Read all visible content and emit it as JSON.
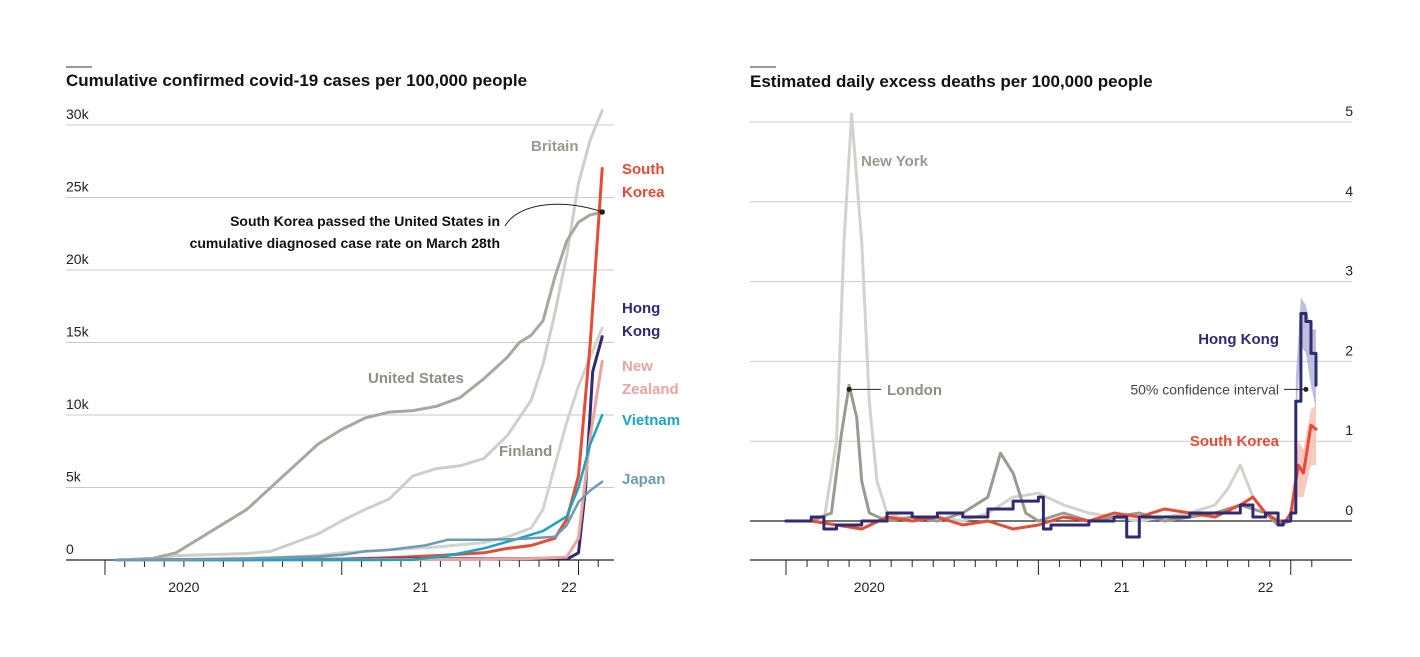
{
  "colors": {
    "britain": "#cfcfca",
    "united_states": "#a8a89e",
    "finland": "#d3d3ce",
    "south_korea": "#e64b35",
    "hong_kong": "#2e2b73",
    "new_zealand": "#e9a5a0",
    "vietnam": "#1aa4c0",
    "japan": "#6f9ab4",
    "new_york": "#d3d3ce",
    "london": "#9a9a90"
  },
  "chart_data": [
    {
      "type": "line",
      "title": "Cumulative confirmed covid-19 cases per 100,000 people",
      "xlabel": "",
      "ylabel": "",
      "ylim": [
        0,
        30000
      ],
      "xlim": [
        2020.0,
        2022.15
      ],
      "y_ticks": [
        0,
        5000,
        10000,
        15000,
        20000,
        25000,
        30000
      ],
      "y_tick_labels": [
        "0",
        "5k",
        "10k",
        "15k",
        "20k",
        "25k",
        "30k"
      ],
      "x_tick_labels": [
        {
          "value": 2020.333,
          "label": "2020"
        },
        {
          "value": 2021.333,
          "label": "21"
        },
        {
          "value": 2021.96,
          "label": "22"
        }
      ],
      "series": [
        {
          "key": "britain",
          "name": "Britain",
          "x": [
            2020.05,
            2020.2,
            2020.3,
            2020.5,
            2020.6,
            2020.7,
            2020.8,
            2020.9,
            2021.0,
            2021.1,
            2021.2,
            2021.3,
            2021.4,
            2021.5,
            2021.6,
            2021.7,
            2021.8,
            2021.85,
            2021.9,
            2021.95,
            2022.0,
            2022.05,
            2022.1
          ],
          "values": [
            0,
            100,
            300,
            400,
            450,
            600,
            1200,
            1800,
            2700,
            3500,
            4200,
            5800,
            6300,
            6500,
            7000,
            8600,
            11000,
            13500,
            17000,
            21000,
            26000,
            29000,
            31000
          ]
        },
        {
          "key": "united_states",
          "name": "United States",
          "x": [
            2020.05,
            2020.2,
            2020.3,
            2020.4,
            2020.5,
            2020.6,
            2020.7,
            2020.8,
            2020.9,
            2021.0,
            2021.1,
            2021.2,
            2021.3,
            2021.4,
            2021.5,
            2021.6,
            2021.7,
            2021.75,
            2021.8,
            2021.85,
            2021.9,
            2021.95,
            2022.0,
            2022.05,
            2022.1
          ],
          "values": [
            0,
            100,
            500,
            1500,
            2500,
            3500,
            5000,
            6500,
            8000,
            9000,
            9800,
            10200,
            10300,
            10600,
            11200,
            12500,
            14000,
            15000,
            15500,
            16500,
            19500,
            22000,
            23300,
            23800,
            24000
          ]
        },
        {
          "key": "finland",
          "name": "Finland",
          "x": [
            2020.05,
            2020.3,
            2020.5,
            2020.7,
            2020.9,
            2021.0,
            2021.2,
            2021.4,
            2021.6,
            2021.7,
            2021.8,
            2021.85,
            2021.9,
            2021.95,
            2022.0,
            2022.05,
            2022.1
          ],
          "values": [
            0,
            50,
            80,
            150,
            300,
            500,
            700,
            900,
            1200,
            1600,
            2200,
            3500,
            6500,
            9500,
            12000,
            14000,
            16000
          ]
        },
        {
          "key": "south_korea",
          "name": "South Korea",
          "x": [
            2020.05,
            2020.5,
            2021.0,
            2021.2,
            2021.4,
            2021.6,
            2021.7,
            2021.8,
            2021.9,
            2021.95,
            2022.0,
            2022.05,
            2022.1
          ],
          "values": [
            0,
            20,
            60,
            150,
            300,
            500,
            800,
            1000,
            1500,
            2800,
            5800,
            15000,
            27000
          ]
        },
        {
          "key": "hong_kong",
          "name": "Hong Kong",
          "x": [
            2020.05,
            2020.5,
            2021.0,
            2021.5,
            2021.8,
            2021.96,
            2022.0,
            2022.03,
            2022.06,
            2022.1
          ],
          "values": [
            0,
            30,
            50,
            80,
            100,
            130,
            500,
            5000,
            13000,
            15400
          ]
        },
        {
          "key": "new_zealand",
          "name": "New Zealand",
          "x": [
            2020.05,
            2020.5,
            2021.0,
            2021.5,
            2021.8,
            2021.95,
            2022.0,
            2022.05,
            2022.1
          ],
          "values": [
            0,
            10,
            20,
            40,
            100,
            200,
            1500,
            8500,
            13700
          ]
        },
        {
          "key": "vietnam",
          "name": "Vietnam",
          "x": [
            2020.05,
            2020.5,
            2021.0,
            2021.3,
            2021.45,
            2021.6,
            2021.75,
            2021.85,
            2021.95,
            2022.0,
            2022.05,
            2022.1
          ],
          "values": [
            0,
            0,
            2,
            20,
            300,
            800,
            1500,
            2000,
            3000,
            5000,
            8000,
            10000
          ]
        },
        {
          "key": "japan",
          "name": "Japan",
          "x": [
            2020.05,
            2020.3,
            2020.6,
            2020.9,
            2021.0,
            2021.1,
            2021.2,
            2021.35,
            2021.45,
            2021.6,
            2021.75,
            2021.9,
            2021.95,
            2022.0,
            2022.05,
            2022.1
          ],
          "values": [
            0,
            30,
            100,
            250,
            350,
            600,
            700,
            1000,
            1400,
            1400,
            1450,
            1600,
            2400,
            4000,
            4800,
            5400
          ]
        }
      ],
      "labels": [
        {
          "key": "britain",
          "lines": [
            "Britain"
          ]
        },
        {
          "key": "united_states",
          "lines": [
            "United States"
          ]
        },
        {
          "key": "finland",
          "lines": [
            "Finland"
          ]
        },
        {
          "key": "south_korea",
          "lines": [
            "South",
            "Korea"
          ]
        },
        {
          "key": "hong_kong",
          "lines": [
            "Hong",
            "Kong"
          ]
        },
        {
          "key": "new_zealand",
          "lines": [
            "New",
            "Zealand"
          ]
        },
        {
          "key": "vietnam",
          "lines": [
            "Vietnam"
          ]
        },
        {
          "key": "japan",
          "lines": [
            "Japan"
          ]
        }
      ],
      "annotations": [
        {
          "key": "sk_pass",
          "lines": [
            "South Korea passed the United States in",
            "cumulative diagnosed case rate on March 28th"
          ],
          "point": {
            "x": 2022.1,
            "y": 24000
          }
        }
      ]
    },
    {
      "type": "line",
      "title": "Estimated daily excess deaths per 100,000 people",
      "xlabel": "",
      "ylabel": "",
      "ylim": [
        -0.5,
        5
      ],
      "xlim": [
        2019.95,
        2022.2
      ],
      "y_ticks": [
        0,
        1,
        2,
        3,
        4,
        5
      ],
      "y_tick_labels": [
        "0",
        "1",
        "2",
        "3",
        "4",
        "5"
      ],
      "x_tick_labels": [
        {
          "value": 2020.33,
          "label": "2020"
        },
        {
          "value": 2021.33,
          "label": "21"
        },
        {
          "value": 2021.9,
          "label": "22"
        }
      ],
      "series": [
        {
          "key": "new_york",
          "name": "New York",
          "x": [
            2020.0,
            2020.1,
            2020.15,
            2020.2,
            2020.23,
            2020.26,
            2020.3,
            2020.33,
            2020.36,
            2020.4,
            2020.45,
            2020.5,
            2020.6,
            2020.7,
            2020.8,
            2020.9,
            2021.0,
            2021.1,
            2021.2,
            2021.3,
            2021.4,
            2021.5,
            2021.6,
            2021.7,
            2021.75,
            2021.8,
            2021.85,
            2021.9,
            2021.95,
            2022.0
          ],
          "values": [
            0.0,
            0.0,
            0.0,
            1.0,
            3.5,
            5.1,
            3.5,
            1.5,
            0.5,
            0.1,
            0.05,
            0.0,
            0.05,
            0.0,
            0.1,
            0.3,
            0.35,
            0.2,
            0.1,
            0.05,
            0.0,
            0.05,
            0.1,
            0.2,
            0.4,
            0.7,
            0.3,
            0.1,
            -0.05,
            0.0
          ]
        },
        {
          "key": "london",
          "name": "London",
          "x": [
            2020.0,
            2020.1,
            2020.18,
            2020.22,
            2020.25,
            2020.28,
            2020.3,
            2020.33,
            2020.4,
            2020.5,
            2020.6,
            2020.7,
            2020.8,
            2020.85,
            2020.9,
            2020.95,
            2021.0,
            2021.1,
            2021.2,
            2021.3,
            2021.4,
            2021.5,
            2021.6,
            2021.7,
            2021.8,
            2021.9,
            2021.95,
            2022.0
          ],
          "values": [
            0.0,
            0.0,
            0.1,
            1.1,
            1.7,
            1.3,
            0.5,
            0.1,
            0.0,
            0.05,
            0.0,
            0.1,
            0.3,
            0.85,
            0.6,
            0.1,
            0.0,
            0.1,
            0.0,
            0.05,
            0.1,
            0.0,
            0.05,
            0.1,
            0.2,
            0.1,
            -0.05,
            0.0
          ]
        },
        {
          "key": "south_korea",
          "name": "South Korea",
          "x": [
            2020.0,
            2020.1,
            2020.2,
            2020.3,
            2020.4,
            2020.5,
            2020.6,
            2020.7,
            2020.8,
            2020.9,
            2021.0,
            2021.1,
            2021.2,
            2021.3,
            2021.4,
            2021.5,
            2021.6,
            2021.7,
            2021.8,
            2021.85,
            2021.9,
            2021.95,
            2021.98,
            2022.0,
            2022.03,
            2022.05,
            2022.08,
            2022.1
          ],
          "values": [
            0.0,
            0.0,
            -0.05,
            -0.1,
            0.05,
            0.0,
            0.05,
            -0.05,
            0.0,
            -0.1,
            -0.05,
            0.05,
            0.0,
            0.1,
            0.05,
            0.15,
            0.1,
            0.05,
            0.2,
            0.3,
            0.1,
            0.0,
            0.0,
            0.1,
            0.7,
            0.6,
            1.2,
            1.15
          ]
        },
        {
          "key": "hong_kong",
          "name": "Hong Kong",
          "x": [
            2020.0,
            2020.05,
            2020.1,
            2020.15,
            2020.2,
            2020.3,
            2020.4,
            2020.5,
            2020.6,
            2020.7,
            2020.8,
            2020.9,
            2021.0,
            2021.02,
            2021.05,
            2021.1,
            2021.2,
            2021.3,
            2021.35,
            2021.4,
            2021.5,
            2021.6,
            2021.7,
            2021.8,
            2021.85,
            2021.9,
            2021.95,
            2021.97,
            2022.0,
            2022.02,
            2022.04,
            2022.06,
            2022.08,
            2022.1
          ],
          "values": [
            0.0,
            0.0,
            0.05,
            -0.1,
            -0.05,
            0.0,
            0.1,
            0.05,
            0.1,
            0.05,
            0.15,
            0.25,
            0.3,
            -0.1,
            -0.05,
            -0.05,
            0.0,
            0.05,
            -0.2,
            0.05,
            0.05,
            0.1,
            0.1,
            0.2,
            0.05,
            0.1,
            -0.05,
            0.0,
            0.1,
            1.5,
            2.6,
            2.5,
            2.1,
            1.7
          ]
        }
      ],
      "bands": [
        {
          "key": "hong_kong",
          "x": [
            2022.02,
            2022.04,
            2022.06,
            2022.08,
            2022.1
          ],
          "lower": [
            1.2,
            2.2,
            2.1,
            1.7,
            1.4
          ],
          "upper": [
            1.8,
            2.8,
            2.7,
            2.4,
            2.4
          ]
        },
        {
          "key": "south_korea",
          "x": [
            2022.0,
            2022.03,
            2022.05,
            2022.08,
            2022.1
          ],
          "lower": [
            0.0,
            0.3,
            0.3,
            0.7,
            0.7
          ],
          "upper": [
            0.2,
            1.0,
            0.9,
            1.4,
            1.45
          ]
        }
      ],
      "labels": [
        {
          "key": "new_york",
          "lines": [
            "New York"
          ]
        },
        {
          "key": "london",
          "lines": [
            "London"
          ]
        },
        {
          "key": "hong_kong",
          "lines": [
            "Hong Kong"
          ]
        },
        {
          "key": "south_korea",
          "lines": [
            "South Korea"
          ]
        }
      ],
      "annotations": [
        {
          "key": "ci",
          "lines": [
            "50% confidence interval"
          ],
          "point": {
            "x": 2022.06,
            "y": 1.65
          }
        }
      ]
    }
  ]
}
